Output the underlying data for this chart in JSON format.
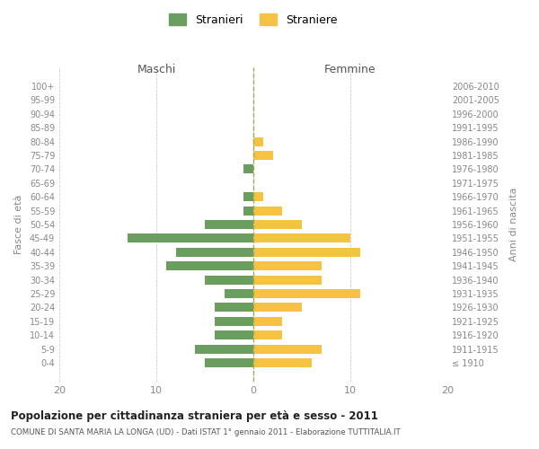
{
  "age_groups": [
    "100+",
    "95-99",
    "90-94",
    "85-89",
    "80-84",
    "75-79",
    "70-74",
    "65-69",
    "60-64",
    "55-59",
    "50-54",
    "45-49",
    "40-44",
    "35-39",
    "30-34",
    "25-29",
    "20-24",
    "15-19",
    "10-14",
    "5-9",
    "0-4"
  ],
  "birth_years": [
    "≤ 1910",
    "1911-1915",
    "1916-1920",
    "1921-1925",
    "1926-1930",
    "1931-1935",
    "1936-1940",
    "1941-1945",
    "1946-1950",
    "1951-1955",
    "1956-1960",
    "1961-1965",
    "1966-1970",
    "1971-1975",
    "1976-1980",
    "1981-1985",
    "1986-1990",
    "1991-1995",
    "1996-2000",
    "2001-2005",
    "2006-2010"
  ],
  "males": [
    0,
    0,
    0,
    0,
    0,
    0,
    1,
    0,
    1,
    1,
    5,
    13,
    8,
    9,
    5,
    3,
    4,
    4,
    4,
    6,
    5
  ],
  "females": [
    0,
    0,
    0,
    0,
    1,
    2,
    0,
    0,
    1,
    3,
    5,
    10,
    11,
    7,
    7,
    11,
    5,
    3,
    3,
    7,
    6
  ],
  "male_color": "#6a9e5e",
  "female_color": "#f5c242",
  "background_color": "#ffffff",
  "grid_color": "#cccccc",
  "title": "Popolazione per cittadinanza straniera per età e sesso - 2011",
  "subtitle": "COMUNE DI SANTA MARIA LA LONGA (UD) - Dati ISTAT 1° gennaio 2011 - Elaborazione TUTTITALIA.IT",
  "ylabel_left": "Fasce di età",
  "ylabel_right": "Anni di nascita",
  "xlabel_left": "Maschi",
  "xlabel_right": "Femmine",
  "legend_stranieri": "Stranieri",
  "legend_straniere": "Straniere",
  "xlim": 20
}
